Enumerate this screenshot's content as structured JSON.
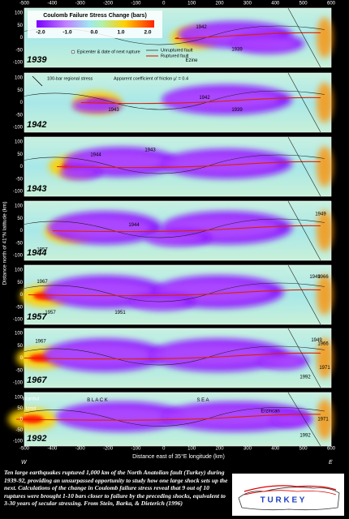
{
  "colorbar": {
    "title": "Coulomb Failure Stress Change (bars)",
    "ticks": [
      "-2.0",
      "-1.0",
      "0.0",
      "1.0",
      "2.0"
    ]
  },
  "x_axis": {
    "ticks": [
      "-500",
      "-400",
      "-300",
      "-200",
      "-100",
      "0",
      "100",
      "200",
      "300",
      "400",
      "500",
      "600"
    ],
    "title": "Distance east of 35°E longitude (km)",
    "west": "W",
    "east": "E"
  },
  "y_axis": {
    "title": "Distance north of 41°N latitude (km)",
    "ticks": [
      "100",
      "50",
      "0",
      "-50",
      "-100"
    ]
  },
  "legend": {
    "epicenter": "Epicenter & date of next rupture",
    "unruptured": "Unruptured fault",
    "ruptured": "Ruptured fault",
    "regional": "100-bar regional stress",
    "friction": "Apparent coefficient of friction μ' = 0.4"
  },
  "panels": [
    {
      "year": "1939",
      "labels": [
        "1942",
        "Ezine",
        "1939"
      ]
    },
    {
      "year": "1942",
      "labels": [
        "1943",
        "1942",
        "1939"
      ]
    },
    {
      "year": "1943",
      "labels": [
        "1944",
        "1943"
      ]
    },
    {
      "year": "1944",
      "labels": [
        "1957",
        "1944",
        "1949"
      ]
    },
    {
      "year": "1957",
      "labels": [
        "1967",
        "1957",
        "1951",
        "1949",
        "1966"
      ]
    },
    {
      "year": "1967",
      "labels": [
        "1967",
        "1992",
        "1949",
        "1966",
        "1971"
      ]
    },
    {
      "year": "1992",
      "labels": [
        "Istanbul",
        "Izmit",
        "B L A C K",
        "S E A",
        "Erzincan",
        "1992",
        "1971"
      ]
    }
  ],
  "caption": "Ten large earthquakes ruptured 1,000 km of the North Anatolian fault (Turkey) during 1939-92, providing an unsurpassed opportunity to study how one large shock sets up the next. Calculations of the change in Coulomb failure stress reveal that 9 out of 10 ruptures were brought 1-10 bars closer to failure by the preceding shocks, equivalent to 3-30 years of secular stressing. From Stein, Barka, & Dieterich (1996)",
  "inset": {
    "label": "T U R K E Y"
  }
}
